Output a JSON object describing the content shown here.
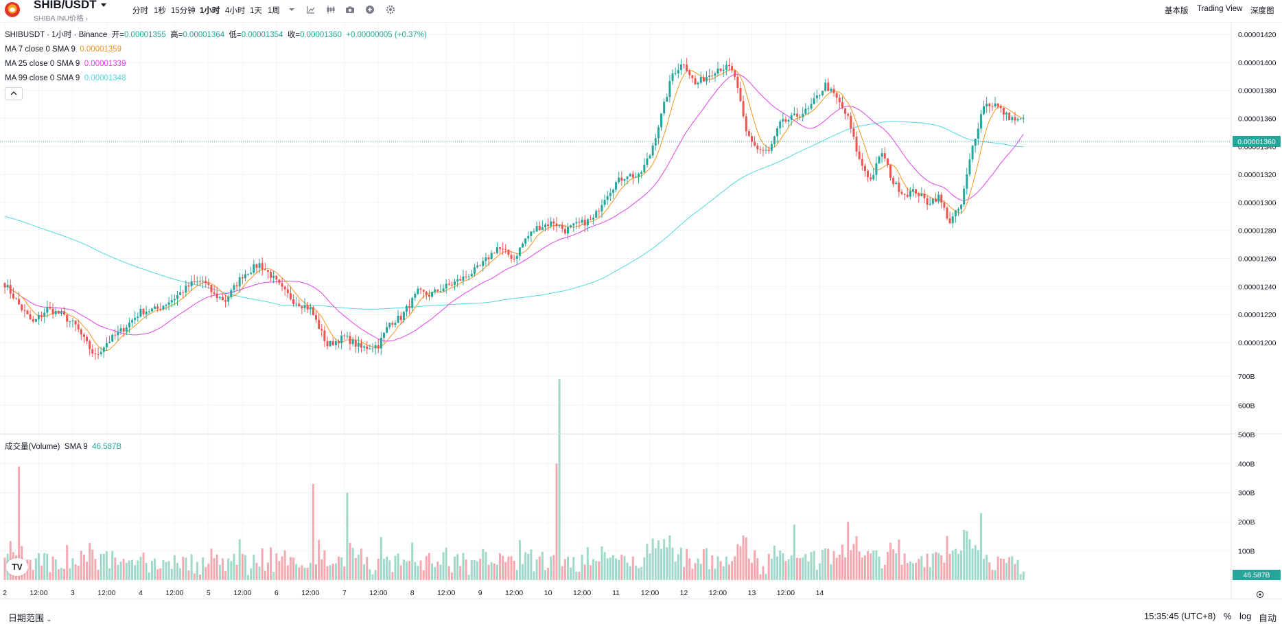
{
  "header": {
    "symbol": "SHIB/USDT",
    "symbol_subtitle": "SHIBA INU价格",
    "timeframes": [
      "分时",
      "1秒",
      "15分钟",
      "1小时",
      "4小时",
      "1天",
      "1周"
    ],
    "active_timeframe": "1小时",
    "icons": [
      "dropdown-icon",
      "indicator-icon",
      "candle-type-icon",
      "camera-icon",
      "plus-icon",
      "gear-icon"
    ],
    "right_links": [
      "基本版",
      "Trading View",
      "深度图"
    ]
  },
  "legend": {
    "title": "SHIBUSDT · 1小时 · Binance",
    "open_label": "开=",
    "open": "0.00001355",
    "high_label": "高=",
    "high": "0.00001364",
    "low_label": "低=",
    "low": "0.00001354",
    "close_label": "收=",
    "close": "0.00001360",
    "change": "+0.00000005 (+0.37%)",
    "ma": [
      {
        "label": "MA 7 close 0 SMA 9",
        "value": "0.00001359",
        "color": "#f7931a"
      },
      {
        "label": "MA 25 close 0 SMA 9",
        "value": "0.00001339",
        "color": "#e040e8"
      },
      {
        "label": "MA 99 close 0 SMA 9",
        "value": "0.00001348",
        "color": "#4fd8e0"
      }
    ]
  },
  "volume_legend": {
    "label": "成交量(Volume)",
    "sma": "SMA 9",
    "value": "46.587B"
  },
  "price_axis": {
    "ticks": [
      "0.00001420",
      "0.00001400",
      "0.00001380",
      "0.00001360",
      "0.00001340",
      "0.00001320",
      "0.00001300",
      "0.00001280",
      "0.00001260",
      "0.00001240",
      "0.00001220",
      "0.00001200"
    ],
    "current_price": "0.00001360",
    "up_color": "#26a69a",
    "down_color": "#ef5350"
  },
  "volume_axis": {
    "ticks": [
      "700B",
      "600B",
      "500B",
      "400B",
      "300B",
      "200B",
      "100B"
    ],
    "current_volume": "46.587B"
  },
  "time_axis": {
    "labels": [
      "2",
      "12:00",
      "3",
      "12:00",
      "4",
      "12:00",
      "5",
      "12:00",
      "6",
      "12:00",
      "7",
      "12:00",
      "8",
      "12:00",
      "9",
      "12:00",
      "10",
      "12:00",
      "11",
      "12:00",
      "12",
      "12:00",
      "13",
      "12:00",
      "14"
    ]
  },
  "bottom": {
    "date_range": "日期范围",
    "clock": "15:35:45 (UTC+8)",
    "pct": "%",
    "log": "log",
    "auto": "自动"
  },
  "chart_data": {
    "type": "candlestick",
    "symbol": "SHIBUSDT",
    "interval": "1h",
    "x_labels": [
      "2",
      "12:00",
      "3",
      "12:00",
      "4",
      "12:00",
      "5",
      "12:00",
      "6",
      "12:00",
      "7",
      "12:00",
      "8",
      "12:00",
      "9",
      "12:00",
      "10",
      "12:00",
      "11",
      "12:00",
      "12",
      "12:00",
      "13",
      "12:00",
      "14"
    ],
    "price_range": [
      1.186e-05,
      1.43e-05
    ],
    "volume_range_B": [
      0,
      700
    ],
    "anchors_hourly": [
      [
        0,
        12.42
      ],
      [
        6,
        12.24
      ],
      [
        10,
        12.14
      ],
      [
        15,
        12.24
      ],
      [
        20,
        12.2
      ],
      [
        25,
        12.12
      ],
      [
        28,
        12.02
      ],
      [
        32,
        11.9
      ],
      [
        36,
        12.0
      ],
      [
        42,
        12.1
      ],
      [
        48,
        12.22
      ],
      [
        54,
        12.24
      ],
      [
        60,
        12.32
      ],
      [
        66,
        12.42
      ],
      [
        70,
        12.44
      ],
      [
        74,
        12.34
      ],
      [
        78,
        12.3
      ],
      [
        84,
        12.48
      ],
      [
        90,
        12.56
      ],
      [
        94,
        12.48
      ],
      [
        98,
        12.38
      ],
      [
        102,
        12.3
      ],
      [
        108,
        12.24
      ],
      [
        114,
        11.98
      ],
      [
        120,
        12.04
      ],
      [
        126,
        11.96
      ],
      [
        132,
        11.98
      ],
      [
        136,
        12.14
      ],
      [
        140,
        12.18
      ],
      [
        146,
        12.36
      ],
      [
        150,
        12.34
      ],
      [
        156,
        12.4
      ],
      [
        162,
        12.46
      ],
      [
        168,
        12.54
      ],
      [
        174,
        12.68
      ],
      [
        180,
        12.6
      ],
      [
        184,
        12.74
      ],
      [
        188,
        12.82
      ],
      [
        194,
        12.86
      ],
      [
        198,
        12.8
      ],
      [
        202,
        12.84
      ],
      [
        208,
        12.88
      ],
      [
        212,
        13.04
      ],
      [
        216,
        13.14
      ],
      [
        220,
        13.2
      ],
      [
        224,
        13.18
      ],
      [
        228,
        13.34
      ],
      [
        232,
        13.62
      ],
      [
        236,
        13.92
      ],
      [
        240,
        14.0
      ],
      [
        244,
        13.84
      ],
      [
        248,
        13.9
      ],
      [
        252,
        13.96
      ],
      [
        256,
        13.96
      ],
      [
        258,
        13.9
      ],
      [
        262,
        13.5
      ],
      [
        266,
        13.38
      ],
      [
        270,
        13.36
      ],
      [
        274,
        13.56
      ],
      [
        280,
        13.62
      ],
      [
        284,
        13.66
      ],
      [
        290,
        13.84
      ],
      [
        294,
        13.74
      ],
      [
        298,
        13.6
      ],
      [
        302,
        13.3
      ],
      [
        306,
        13.16
      ],
      [
        310,
        13.36
      ],
      [
        314,
        13.14
      ],
      [
        318,
        13.06
      ],
      [
        322,
        13.08
      ],
      [
        326,
        13.0
      ],
      [
        330,
        13.04
      ],
      [
        334,
        12.86
      ],
      [
        338,
        12.98
      ],
      [
        342,
        13.4
      ],
      [
        346,
        13.7
      ],
      [
        350,
        13.7
      ],
      [
        354,
        13.62
      ],
      [
        358,
        13.58
      ],
      [
        360,
        13.6
      ]
    ],
    "volume_spikes_B": [
      [
        5,
        390
      ],
      [
        109,
        330
      ],
      [
        121,
        300
      ],
      [
        196,
        690
      ],
      [
        195,
        400
      ],
      [
        279,
        190
      ],
      [
        345,
        230
      ],
      [
        298,
        200
      ]
    ],
    "ma_lines": [
      "MA 7",
      "MA 25",
      "MA 99"
    ]
  }
}
